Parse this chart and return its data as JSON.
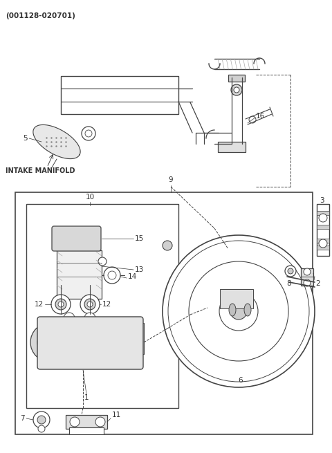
{
  "title": "(001128-020701)",
  "bg_color": "#ffffff",
  "lc": "#444444",
  "fig_width": 4.8,
  "fig_height": 6.55,
  "dpi": 100
}
